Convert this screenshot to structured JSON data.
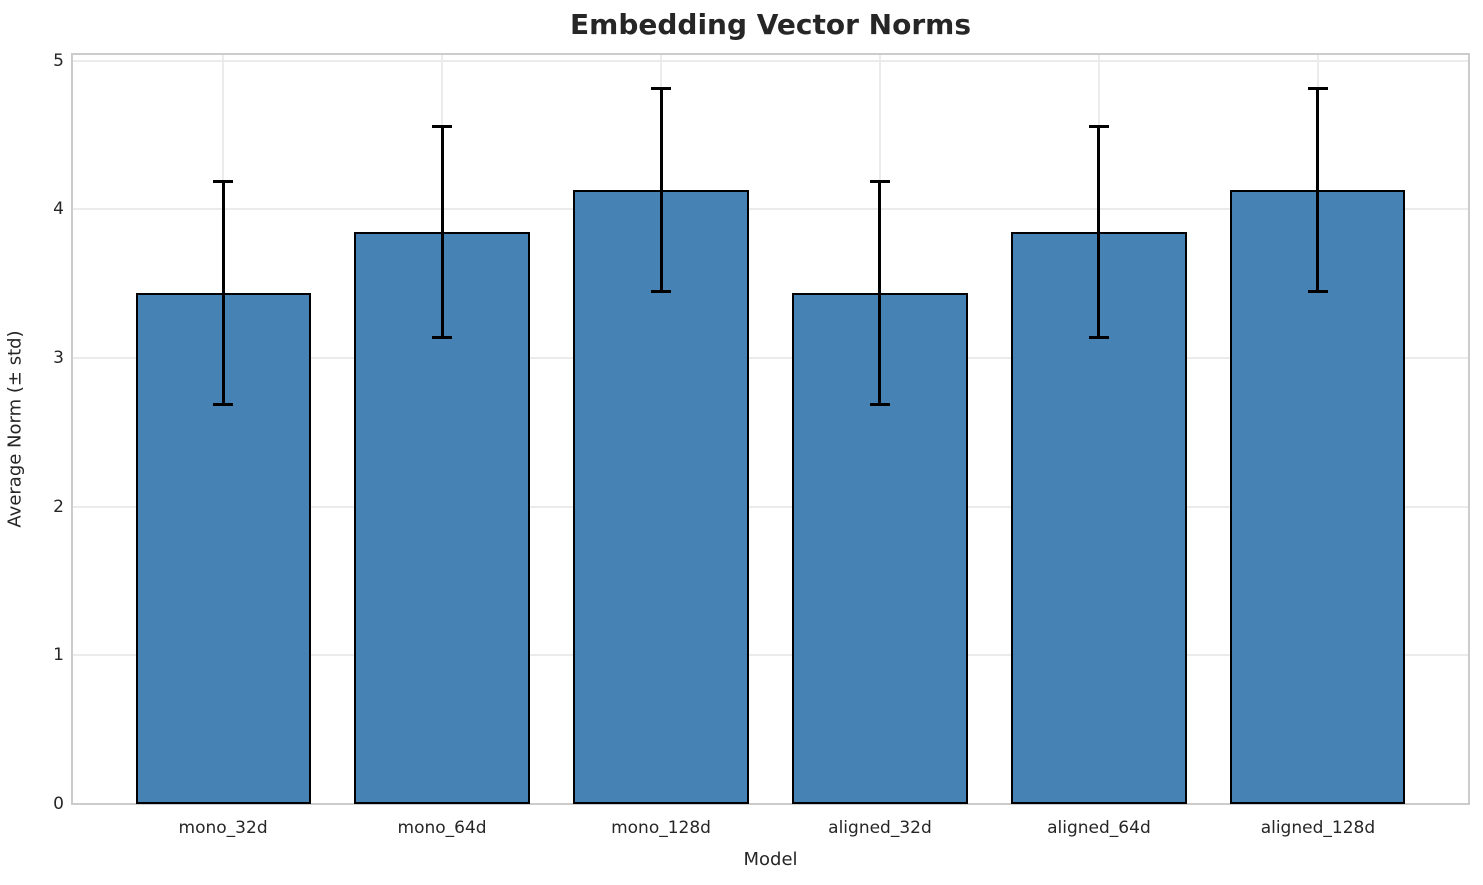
{
  "chart_data": {
    "type": "bar",
    "title": "Embedding Vector Norms",
    "xlabel": "Model",
    "ylabel": "Average Norm (± std)",
    "categories": [
      "mono_32d",
      "mono_64d",
      "mono_128d",
      "aligned_32d",
      "aligned_64d",
      "aligned_128d"
    ],
    "values": [
      3.44,
      3.85,
      4.13,
      3.44,
      3.85,
      4.13
    ],
    "errors": [
      0.75,
      0.71,
      0.68,
      0.75,
      0.71,
      0.68
    ],
    "error_bars": true,
    "yticks": [
      0,
      1,
      2,
      3,
      4,
      5
    ],
    "ylim": [
      0,
      5.045
    ],
    "xlim": [
      -0.69,
      5.69
    ],
    "bar_width": 0.8,
    "grid": true,
    "legend": false,
    "colors": {
      "bar_fill": "#4682B4",
      "bar_edge": "#000000",
      "error": "#000000",
      "grid": "#ebebeb",
      "spine": "#cccccc",
      "text": "#262626"
    }
  }
}
